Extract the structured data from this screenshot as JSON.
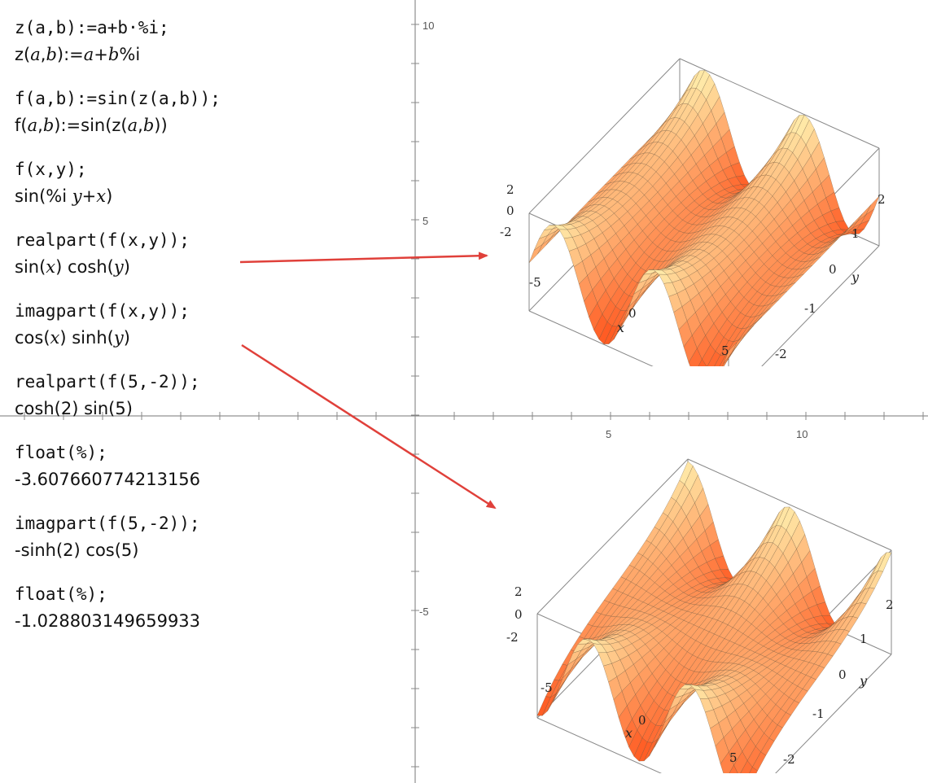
{
  "axis": {
    "y_ticks": [
      "10",
      "5",
      "-5"
    ],
    "x_ticks": [
      "5",
      "10"
    ]
  },
  "cells": [
    {
      "input": "z(a,b):=a+b·%i;",
      "output": "z(a,b):=a+b %i"
    },
    {
      "input": "f(a,b):=sin(z(a,b));",
      "output": "f(a,b):=sin(z(a,b))"
    },
    {
      "input": "f(x,y);",
      "output": "sin(%i y+x)"
    },
    {
      "input": "realpart(f(x,y));",
      "output": "sin(x) cosh(y)"
    },
    {
      "input": "imagpart(f(x,y));",
      "output": "cos(x) sinh(y)"
    },
    {
      "input": "realpart(f(5,-2));",
      "output": "cosh(2) sin(5)"
    },
    {
      "input": "float(%);",
      "output": "-3.607660774213156"
    },
    {
      "input": "imagpart(f(5,-2));",
      "output": "-sinh(2) cos(5)"
    },
    {
      "input": "float(%);",
      "output": "-1.028803149659933"
    }
  ],
  "plots": [
    {
      "surface": "sin(x) cosh(y)",
      "x_ticks": [
        "-5",
        "0",
        "5"
      ],
      "y_ticks": [
        "2",
        "1",
        "0",
        "-1",
        "-2"
      ],
      "z_ticks": [
        "2",
        "0",
        "-2"
      ],
      "xlabel": "x",
      "ylabel": "y"
    },
    {
      "surface": "cos(x) sinh(y)",
      "x_ticks": [
        "-5",
        "0",
        "5"
      ],
      "y_ticks": [
        "2",
        "1",
        "0",
        "-1",
        "-2"
      ],
      "z_ticks": [
        "2",
        "0",
        "-2"
      ],
      "xlabel": "x",
      "ylabel": "y"
    }
  ],
  "colors": {
    "arrow": "#e0403a",
    "axis": "#777777",
    "surface_light": "#fff2b0",
    "surface_dark": "#e04a1c"
  }
}
